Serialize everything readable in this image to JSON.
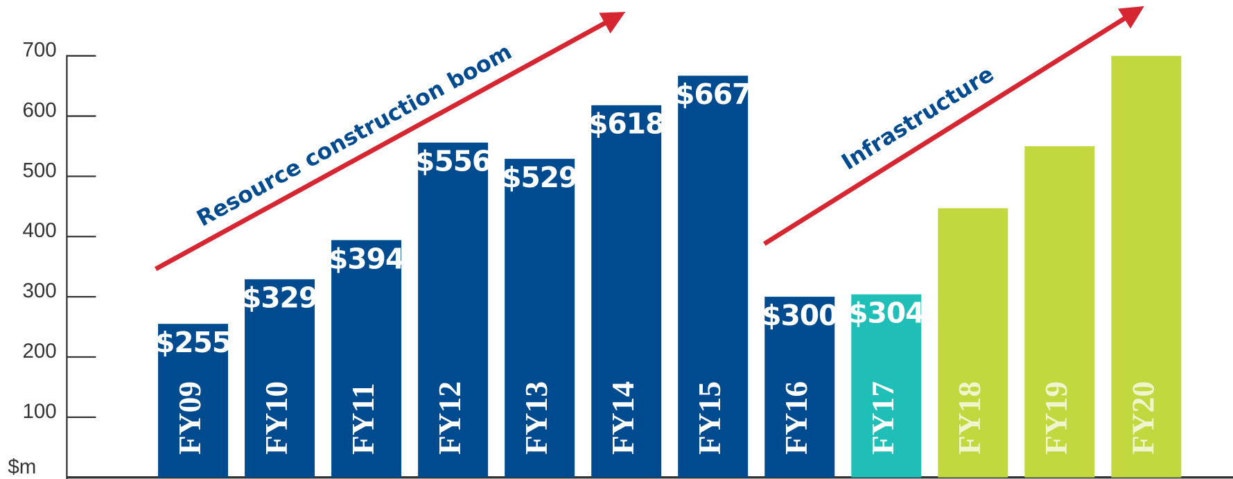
{
  "chart_data": {
    "type": "bar",
    "categories": [
      "FY09",
      "FY10",
      "FY11",
      "FY12",
      "FY13",
      "FY14",
      "FY15",
      "FY16",
      "FY17",
      "FY18",
      "FY19",
      "FY20"
    ],
    "values": [
      255,
      329,
      394,
      556,
      529,
      618,
      667,
      300,
      304,
      447,
      550,
      700
    ],
    "value_labels": [
      "$255",
      "$329",
      "$394",
      "$556",
      "$529",
      "$618",
      "$667",
      "$300",
      "$304",
      null,
      null,
      null
    ],
    "colors": [
      "#004a8f",
      "#004a8f",
      "#004a8f",
      "#004a8f",
      "#004a8f",
      "#004a8f",
      "#004a8f",
      "#004a8f",
      "#1fbfb8",
      "#c2d83e",
      "#c2d83e",
      "#c2d83e"
    ],
    "ylabel": "$m",
    "ylim": [
      0,
      700
    ],
    "yticks": [
      100,
      200,
      300,
      400,
      500,
      600,
      700
    ],
    "annotations": [
      "Resource construction boom",
      "Infrastructure"
    ]
  }
}
